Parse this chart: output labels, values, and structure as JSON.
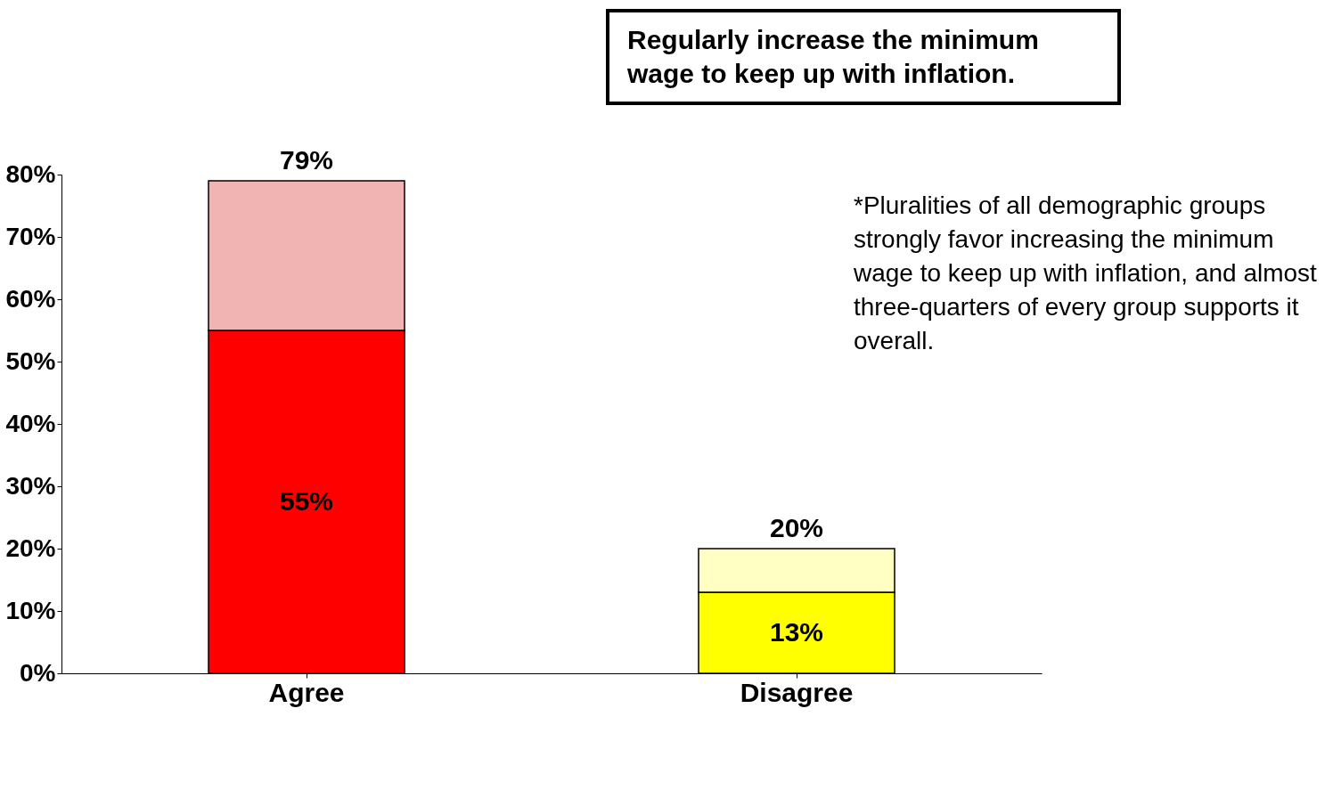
{
  "chart_data": {
    "type": "bar",
    "stacked": true,
    "title": "Regularly increase the minimum wage to keep up with inflation.",
    "categories": [
      "Agree",
      "Disagree"
    ],
    "series": [
      {
        "colors": [
          "#ff0000",
          "#ffff00"
        ],
        "values": [
          55,
          13
        ],
        "value_labels": [
          "55%",
          "13%"
        ]
      },
      {
        "colors": [
          "#f2b3b3",
          "#ffffc4"
        ],
        "values": [
          24,
          7
        ]
      }
    ],
    "totals": [
      "79%",
      "20%"
    ],
    "ylim": [
      0,
      80
    ],
    "yticks": [
      {
        "value": 0,
        "label": "0%"
      },
      {
        "value": 10,
        "label": "10%"
      },
      {
        "value": 20,
        "label": "20%"
      },
      {
        "value": 30,
        "label": "30%"
      },
      {
        "value": 40,
        "label": "40%"
      },
      {
        "value": 50,
        "label": "50%"
      },
      {
        "value": 60,
        "label": "60%"
      },
      {
        "value": 70,
        "label": "70%"
      },
      {
        "value": 80,
        "label": "80%"
      }
    ],
    "annotations": [
      "*Pluralities of all demographic groups strongly favor increasing the minimum wage to keep up with inflation, and almost three-quarters of every group supports it overall."
    ],
    "grid": false
  }
}
